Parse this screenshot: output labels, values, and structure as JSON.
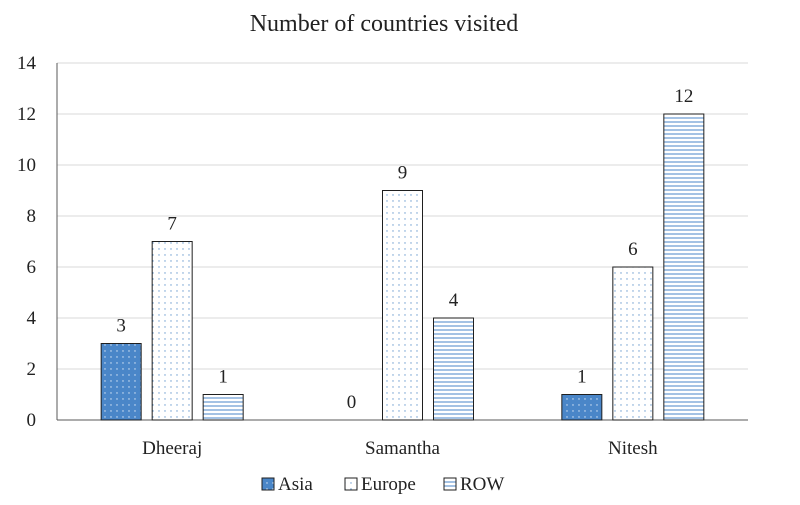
{
  "chart_data": {
    "type": "bar",
    "title": "Number of countries visited",
    "categories": [
      "Dheeraj",
      "Samantha",
      "Nitesh"
    ],
    "series": [
      {
        "name": "Asia",
        "values": [
          3,
          0,
          1
        ],
        "color": "#4a86c8",
        "pattern": "dots-white"
      },
      {
        "name": "Europe",
        "values": [
          7,
          9,
          6
        ],
        "color": "#ffffff",
        "pattern": "dots-blue"
      },
      {
        "name": "ROW",
        "values": [
          1,
          4,
          12
        ],
        "color": "#ffffff",
        "pattern": "horizontal-lines"
      }
    ],
    "ylim": [
      0,
      14
    ],
    "yticks": [
      0,
      2,
      4,
      6,
      8,
      10,
      12,
      14
    ],
    "grid": true,
    "legend_position": "bottom",
    "data_labels": true
  }
}
